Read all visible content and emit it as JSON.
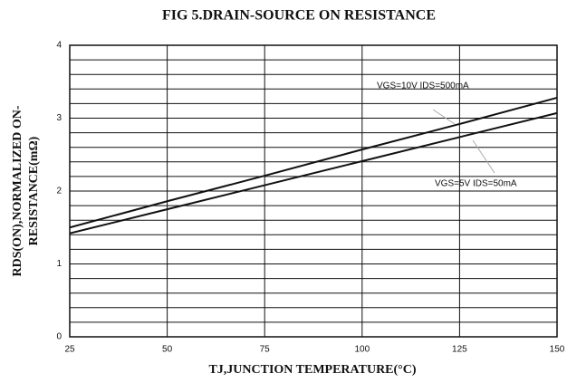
{
  "chart_data": {
    "type": "line",
    "title": "FIG 5.DRAIN-SOURCE ON RESISTANCE",
    "xlabel": "TJ,JUNCTION TEMPERATURE(°C)",
    "ylabel": [
      "RDS(ON),NORMALIZED ON-",
      "RESISTANCE(mΩ)"
    ],
    "x": [
      25,
      50,
      75,
      100,
      125,
      150
    ],
    "series": [
      {
        "name": "VGS=10V IDS=500mA",
        "color": "#111111",
        "values": [
          1.5,
          1.86,
          2.21,
          2.57,
          2.92,
          3.28
        ]
      },
      {
        "name": "VGS=5V IDS=50mA",
        "color": "#111111",
        "values": [
          1.42,
          1.75,
          2.08,
          2.41,
          2.74,
          3.07
        ]
      }
    ],
    "xlim": [
      25,
      150
    ],
    "xticks": [
      25,
      50,
      75,
      100,
      125,
      150
    ],
    "ylim": [
      0,
      4
    ],
    "yticks": [
      0,
      1,
      2,
      3,
      4
    ],
    "yminorticks": [
      0.2,
      0.4,
      0.6,
      0.8,
      1.2,
      1.4,
      1.6,
      1.8,
      2.2,
      2.4,
      2.6,
      2.8,
      3.2,
      3.4,
      3.6,
      3.8
    ],
    "grid": true
  }
}
